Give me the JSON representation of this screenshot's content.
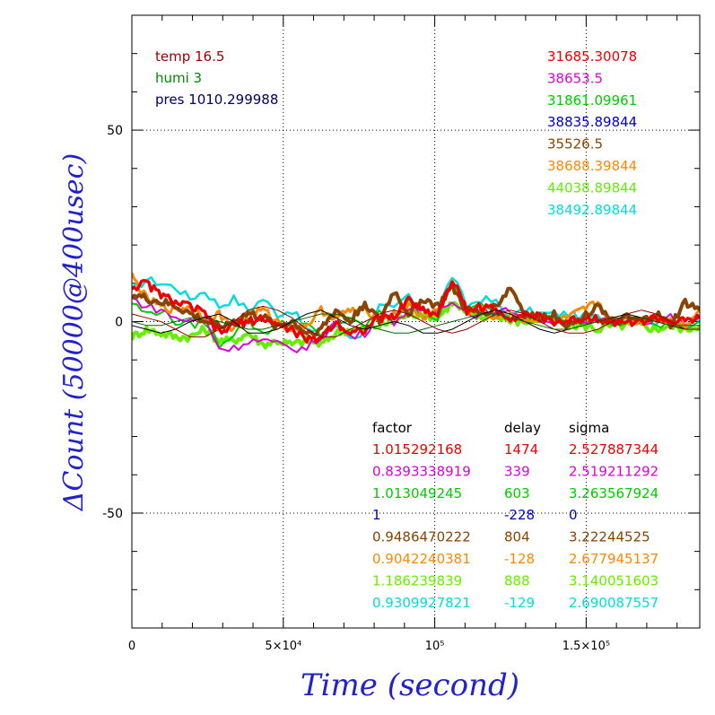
{
  "chart_data": {
    "type": "line",
    "xlabel": "Time (second)",
    "ylabel": "ΔCount (50000@400usec)",
    "xlim": [
      0,
      187500
    ],
    "ylim": [
      -80,
      80
    ],
    "x_ticks": [
      {
        "value": 0,
        "label": "0"
      },
      {
        "value": 50000,
        "label": "5×10⁴"
      },
      {
        "value": 100000,
        "label": "10⁵"
      },
      {
        "value": 150000,
        "label": "1.5×10⁵"
      }
    ],
    "y_ticks": [
      {
        "value": 50,
        "label": "50"
      },
      {
        "value": 0,
        "label": "0"
      },
      {
        "value": -50,
        "label": "-50"
      }
    ],
    "grid": true,
    "env": [
      {
        "text": "temp 16.5",
        "color": "#990000"
      },
      {
        "text": "humi 3",
        "color": "#008800"
      },
      {
        "text": "pres 1010.299988",
        "color": "#000066"
      }
    ],
    "means": [
      {
        "text": "31685.30078",
        "color": "#ee0000"
      },
      {
        "text": "38653.5",
        "color": "#dd00dd"
      },
      {
        "text": "31861.09961",
        "color": "#00cc00"
      },
      {
        "text": "38835.89844",
        "color": "#0000cc"
      },
      {
        "text": "35526.5",
        "color": "#884400"
      },
      {
        "text": "38688.39844",
        "color": "#ff8800"
      },
      {
        "text": "44038.89844",
        "color": "#66ee00"
      },
      {
        "text": "38492.89844",
        "color": "#00dddd"
      }
    ],
    "table_headers": [
      "factor",
      "delay",
      "sigma"
    ],
    "table_rows": [
      {
        "factor": "1.015292168",
        "delay": "1474",
        "sigma": "2.527887344",
        "color": "#ee0000"
      },
      {
        "factor": "0.8393338919",
        "delay": "339",
        "sigma": "2.519211292",
        "color": "#dd00dd"
      },
      {
        "factor": "1.013049245",
        "delay": "603",
        "sigma": "3.263567924",
        "color": "#00cc00"
      },
      {
        "factor": "1",
        "delay": "-228",
        "sigma": "0",
        "color": "#0000cc"
      },
      {
        "factor": "0.9486470222",
        "delay": "804",
        "sigma": "3.22244525",
        "color": "#884400"
      },
      {
        "factor": "0.9042240381",
        "delay": "-128",
        "sigma": "2.677945137",
        "color": "#ff8800"
      },
      {
        "factor": "1.186239839",
        "delay": "888",
        "sigma": "3.140051603",
        "color": "#66ee00"
      },
      {
        "factor": "0.9309927821",
        "delay": "-129",
        "sigma": "2.690087557",
        "color": "#00dddd"
      }
    ],
    "series": [
      {
        "color": "#00dddd",
        "width": 2.5,
        "values": [
          8,
          11,
          10,
          9,
          6,
          8,
          4,
          6,
          3,
          6,
          2,
          3,
          -2,
          -4,
          -1,
          -4,
          -3,
          4,
          3,
          7,
          1,
          3,
          12,
          4,
          6,
          5,
          1,
          3,
          2,
          2,
          2,
          1,
          1,
          0,
          1,
          1,
          0,
          0,
          -1,
          0
        ]
      },
      {
        "color": "#66ee00",
        "width": 4,
        "values": [
          -4,
          -2,
          -3,
          -4,
          -4,
          -2,
          -5,
          -5,
          -3,
          -6,
          -5,
          -6,
          -5,
          -6,
          -3,
          -2,
          -2,
          -1,
          0,
          2,
          2,
          1,
          5,
          2,
          1,
          2,
          0,
          0,
          1,
          0,
          -1,
          -1,
          -2,
          -1,
          -1,
          -1,
          -2,
          -1,
          -2,
          -1
        ]
      },
      {
        "color": "#00cc00",
        "width": 2,
        "values": [
          5,
          2,
          3,
          0,
          -1,
          0,
          -6,
          -3,
          0,
          -3,
          -1,
          0,
          -1,
          -4,
          0,
          0,
          -1,
          2,
          1,
          5,
          2,
          1,
          10,
          3,
          4,
          2,
          2,
          1,
          3,
          0,
          1,
          0,
          0,
          -1,
          0,
          0,
          -1,
          0,
          -1,
          0
        ]
      },
      {
        "color": "#dd00dd",
        "width": 2,
        "values": [
          6,
          4,
          3,
          1,
          0,
          1,
          -7,
          -7,
          -5,
          -5,
          -6,
          -7,
          -7,
          -4,
          0,
          -4,
          -3,
          2,
          0,
          3,
          2,
          3,
          6,
          2,
          2,
          2,
          3,
          2,
          1,
          0,
          0,
          -1,
          0,
          0,
          1,
          0,
          1,
          1,
          -1,
          1
        ]
      },
      {
        "color": "#ff8800",
        "width": 3,
        "values": [
          12,
          6,
          4,
          3,
          4,
          1,
          2,
          -2,
          2,
          3,
          0,
          -2,
          -1,
          3,
          1,
          3,
          3,
          1,
          2,
          4,
          1,
          3,
          10,
          2,
          3,
          1,
          2,
          0,
          1,
          0,
          1,
          3,
          5,
          0,
          1,
          0,
          1,
          0,
          -1,
          3
        ]
      },
      {
        "color": "#884400",
        "width": 4,
        "values": [
          7,
          6,
          5,
          4,
          2,
          0,
          -1,
          0,
          2,
          1,
          -1,
          0,
          -3,
          -2,
          3,
          0,
          5,
          0,
          8,
          2,
          6,
          4,
          9,
          3,
          2,
          4,
          9,
          2,
          1,
          2,
          -1,
          1,
          5,
          -1,
          1,
          0,
          2,
          -1,
          5,
          3
        ]
      },
      {
        "color": "#ee0000",
        "width": 3.5,
        "values": [
          9,
          10,
          7,
          5,
          4,
          2,
          -3,
          -1,
          0,
          1,
          -1,
          -2,
          -5,
          -4,
          0,
          -3,
          -2,
          1,
          1,
          6,
          3,
          2,
          11,
          3,
          4,
          3,
          1,
          2,
          1,
          0,
          0,
          1,
          1,
          0,
          0,
          0,
          1,
          0,
          0,
          1
        ]
      },
      {
        "color": "#000000",
        "width": 1,
        "values": [
          -1,
          -2,
          -3,
          -2,
          0,
          1,
          2,
          0,
          -3,
          -3,
          -2,
          0,
          2,
          3,
          1,
          -1,
          -2,
          -1,
          0,
          -1,
          -3,
          -3,
          -2,
          0,
          2,
          3,
          2,
          0,
          -2,
          -3,
          -2,
          -1,
          0,
          1,
          2,
          1,
          0,
          -1,
          -2,
          -2
        ]
      },
      {
        "color": "#990000",
        "width": 1,
        "values": [
          2,
          1,
          0,
          -2,
          -4,
          -4,
          -2,
          0,
          3,
          4,
          3,
          1,
          -2,
          -4,
          -4,
          -2,
          0,
          2,
          3,
          2,
          0,
          -2,
          -3,
          -2,
          0,
          2,
          3,
          2,
          0,
          -2,
          -3,
          -3,
          -2,
          0,
          2,
          3,
          2,
          0,
          -2,
          -2
        ]
      },
      {
        "color": "#006600",
        "width": 1,
        "values": [
          0,
          -1,
          -1,
          0,
          1,
          1,
          0,
          -1,
          -2,
          -2,
          -1,
          0,
          1,
          2,
          2,
          1,
          -1,
          -2,
          -3,
          -3,
          -2,
          -1,
          0,
          1,
          2,
          2,
          1,
          0,
          -1,
          -2,
          -2,
          -1,
          0,
          1,
          1,
          1,
          0,
          -1,
          -1,
          -1
        ]
      }
    ]
  }
}
